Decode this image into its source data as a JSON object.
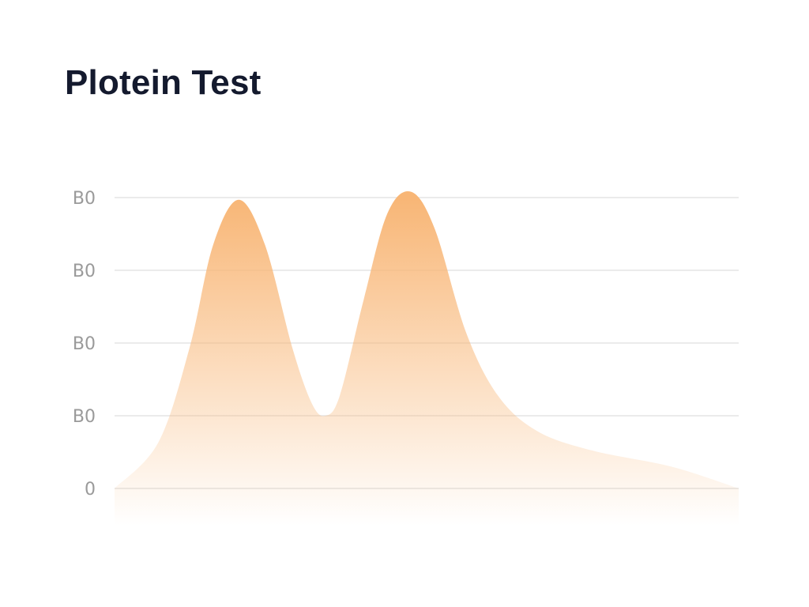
{
  "chart_data": {
    "type": "area",
    "title": "Plotein Test",
    "xlabel": "",
    "ylabel": "",
    "y_tick_labels": [
      "0",
      "B0",
      "B0",
      "B0",
      "B0"
    ],
    "ylim": [
      0,
      4
    ],
    "xlim": [
      0,
      100
    ],
    "grid": true,
    "legend": "none",
    "fill_color_top": "#f8b676",
    "fill_color_bottom": "#ffffff",
    "gridline_color": "#ebebeb",
    "series": [
      {
        "x": [
          0,
          7,
          12,
          15.8,
          19.9,
          24.1,
          28.5,
          31.6,
          33.8,
          36.1,
          39.9,
          43.7,
          47.5,
          51.3,
          56.3,
          61.4,
          67.7,
          76.6,
          89.2,
          100
        ],
        "y": [
          0,
          0.63,
          1.93,
          3.35,
          3.97,
          3.35,
          1.93,
          1.17,
          1.0,
          1.28,
          2.59,
          3.78,
          4.08,
          3.57,
          2.15,
          1.28,
          0.79,
          0.52,
          0.3,
          0
        ]
      }
    ]
  }
}
